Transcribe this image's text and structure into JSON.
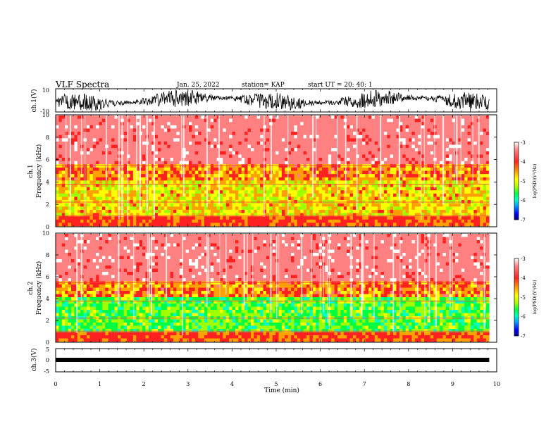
{
  "header": {
    "title": "VLF Spectra",
    "date": "Jan. 25, 2022",
    "station": "station= KAP",
    "start": "start  UT  =   20: 40: 1"
  },
  "colors": {
    "spectrum": [
      "#000080",
      "#0000ff",
      "#00a0ff",
      "#00ffc0",
      "#00ff40",
      "#a0ff00",
      "#ffff00",
      "#ffa000",
      "#ff2020",
      "#ff8080",
      "#ffffff"
    ]
  },
  "chart_data": [
    {
      "type": "line",
      "name": "ch1-waveform",
      "ylabel": "ch.1(V)",
      "ylim": [
        -10,
        10
      ],
      "yticks": [
        "10",
        "-10"
      ],
      "xlim": [
        0,
        10
      ],
      "duration_min": 9.83
    },
    {
      "type": "heatmap",
      "name": "ch1-spectrogram",
      "ylabel_line1": "ch.1",
      "ylabel_line2": "Frequency  (kHz)",
      "ylim": [
        0,
        10
      ],
      "yticks": [
        "0",
        "2",
        "4",
        "6",
        "8",
        "10"
      ],
      "colorbar": {
        "label": "log(PSD)(V²/Hz)",
        "range": [
          -7,
          -3
        ],
        "ticks": [
          "-3",
          "-4",
          "-5",
          "-6",
          "-7"
        ]
      }
    },
    {
      "type": "heatmap",
      "name": "ch2-spectrogram",
      "ylabel_line1": "ch.2",
      "ylabel_line2": "Frequency  (kHz)",
      "ylim": [
        0,
        10
      ],
      "yticks": [
        "0",
        "2",
        "4",
        "6",
        "8",
        "10"
      ],
      "colorbar": {
        "label": "log(PSD)(V²/Hz)",
        "range": [
          -7,
          -3
        ],
        "ticks": [
          "-3",
          "-4",
          "-5",
          "-6",
          "-7"
        ]
      }
    },
    {
      "type": "line",
      "name": "ch3-waveform",
      "ylabel": "ch.3(V)",
      "ylim": [
        -5,
        5
      ],
      "yticks": [
        "5",
        "0",
        "-5"
      ],
      "xlim": [
        0,
        10
      ],
      "xlabel": "Time  (min)",
      "xticks": [
        "0",
        "1",
        "2",
        "3",
        "4",
        "5",
        "6",
        "7",
        "8",
        "9",
        "10"
      ]
    }
  ]
}
